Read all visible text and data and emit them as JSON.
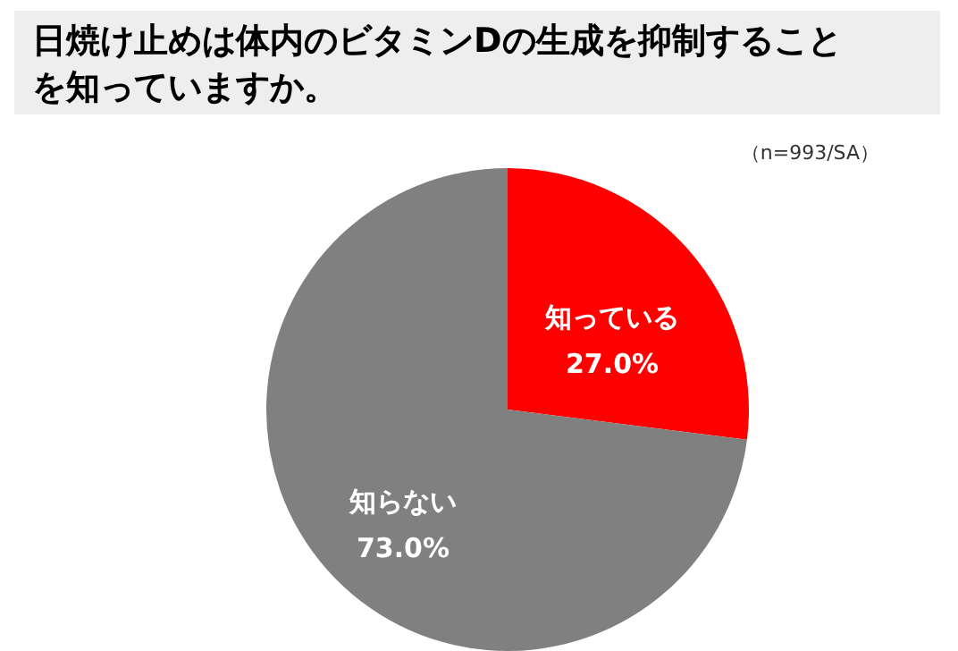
{
  "chart_data": {
    "type": "pie",
    "title": "日焼け止めは体内のビタミンDの生成を抑制することを知っていますか。",
    "annotations": [
      "（n=993/SA）"
    ],
    "categories": [
      "知っている",
      "知らない"
    ],
    "values": [
      27.0,
      73.0
    ],
    "colors": [
      "#ff0000",
      "#808080"
    ],
    "value_labels": [
      "27.0%",
      "73.0%"
    ]
  }
}
